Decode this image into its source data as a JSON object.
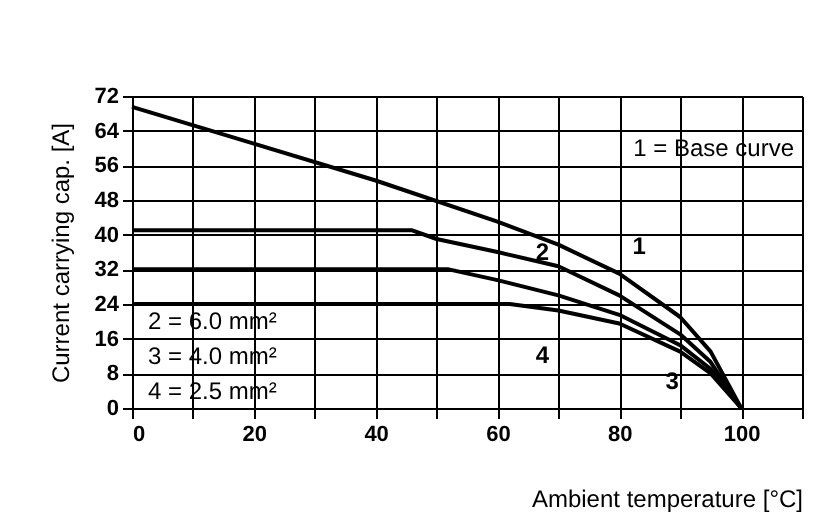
{
  "chart_data": {
    "type": "line",
    "xlabel": "Ambient temperature [°C]",
    "ylabel": "Current carrying cap. [A]",
    "annotations": [
      "1 = Base curve",
      "2 = 6.0 mm²",
      "3 = 4.0 mm²",
      "4 = 2.5 mm²"
    ],
    "xlim": [
      0,
      110
    ],
    "ylim": [
      0,
      72
    ],
    "xticks": [
      0,
      {
        "value": 10,
        "label": null
      },
      20,
      {
        "value": 30,
        "label": null
      },
      40,
      {
        "value": 50,
        "label": null
      },
      60,
      {
        "value": 70,
        "label": null
      },
      80,
      {
        "value": 90,
        "label": null
      },
      100,
      {
        "value": 110,
        "label": null
      }
    ],
    "yticks": [
      0,
      8,
      16,
      24,
      32,
      40,
      48,
      56,
      64,
      72
    ],
    "grid": true,
    "legend": false,
    "line_style": "solid",
    "marker": "none",
    "series": [
      {
        "name": "1",
        "color": "#000000",
        "x": [
          0,
          20,
          40,
          60,
          70,
          80,
          90,
          95,
          100
        ],
        "values": [
          69.5,
          61,
          52.5,
          43,
          37.7,
          31,
          21,
          13,
          0
        ]
      },
      {
        "name": "2",
        "color": "#000000",
        "x": [
          0,
          46,
          50,
          60,
          70,
          80,
          90,
          95,
          100
        ],
        "values": [
          41,
          41,
          39,
          36,
          32.7,
          26,
          17,
          10.6,
          0
        ]
      },
      {
        "name": "3",
        "color": "#000000",
        "x": [
          0,
          52,
          60,
          70,
          80,
          90,
          95,
          100
        ],
        "values": [
          32,
          32,
          29.5,
          26,
          21.5,
          14.5,
          9,
          0
        ]
      },
      {
        "name": "4",
        "color": "#000000",
        "x": [
          0,
          62,
          70,
          80,
          90,
          95,
          100
        ],
        "values": [
          24,
          24,
          22.5,
          19.5,
          13,
          8,
          0
        ]
      }
    ]
  }
}
